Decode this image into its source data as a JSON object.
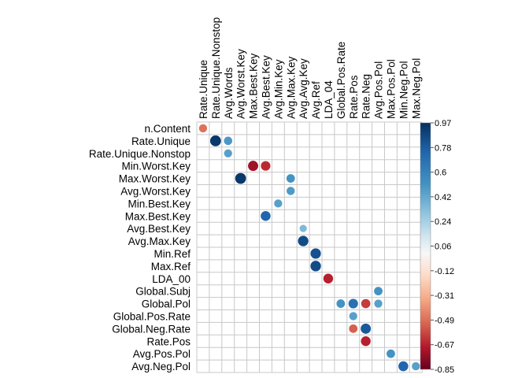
{
  "chart_data": {
    "type": "heatmap",
    "style": "correlation circles, color-coded",
    "rows": [
      "n.Content",
      "Rate.Unique",
      "Rate.Unique.Nonstop",
      "Min.Worst.Key",
      "Max.Worst.Key",
      "Avg.Worst.Key",
      "Min.Best.Key",
      "Max.Best.Key",
      "Avg.Best.Key",
      "Avg.Max.Key",
      "Min.Ref",
      "Max.Ref",
      "LDA_00",
      "Global.Subj",
      "Global.Pol",
      "Global.Pos.Rate",
      "Global.Neg.Rate",
      "Rate.Pos",
      "Avg.Pos.Pol",
      "Avg.Neg.Pol"
    ],
    "columns": [
      "Rate.Unique",
      "Rate.Unique.Nonstop",
      "Avg.Words",
      "Avg.Worst.Key",
      "Max.Best.Key",
      "Avg.Best.Key",
      "Avg.Min.Key",
      "Avg.Max.Key",
      "Avg.Avg.Key",
      "Avg.Ref",
      "LDA_04",
      "Global.Pos.Rate",
      "Rate.Pos",
      "Rate.Neg",
      "Avg.Pos.Pol",
      "Max.Pos.Pol",
      "Min.Neg.Pol",
      "Max.Neg.Pol"
    ],
    "cells": [
      {
        "row": "n.Content",
        "col": "Rate.Unique",
        "value": -0.55
      },
      {
        "row": "Rate.Unique",
        "col": "Rate.Unique.Nonstop",
        "value": 0.97
      },
      {
        "row": "Rate.Unique",
        "col": "Avg.Words",
        "value": 0.58
      },
      {
        "row": "Rate.Unique.Nonstop",
        "col": "Avg.Words",
        "value": 0.55
      },
      {
        "row": "Min.Worst.Key",
        "col": "Max.Best.Key",
        "value": -0.85
      },
      {
        "row": "Min.Worst.Key",
        "col": "Avg.Best.Key",
        "value": -0.75
      },
      {
        "row": "Max.Worst.Key",
        "col": "Avg.Worst.Key",
        "value": 0.97
      },
      {
        "row": "Max.Worst.Key",
        "col": "Avg.Max.Key",
        "value": 0.6
      },
      {
        "row": "Avg.Worst.Key",
        "col": "Avg.Max.Key",
        "value": 0.57
      },
      {
        "row": "Min.Best.Key",
        "col": "Avg.Min.Key",
        "value": 0.55
      },
      {
        "row": "Max.Best.Key",
        "col": "Avg.Best.Key",
        "value": 0.8
      },
      {
        "row": "Avg.Best.Key",
        "col": "Avg.Avg.Key",
        "value": 0.45
      },
      {
        "row": "Avg.Max.Key",
        "col": "Avg.Avg.Key",
        "value": 0.9
      },
      {
        "row": "Min.Ref",
        "col": "Avg.Ref",
        "value": 0.88
      },
      {
        "row": "Max.Ref",
        "col": "Avg.Ref",
        "value": 0.9
      },
      {
        "row": "LDA_00",
        "col": "LDA_04",
        "value": -0.78
      },
      {
        "row": "Global.Subj",
        "col": "Avg.Pos.Pol",
        "value": 0.6
      },
      {
        "row": "Global.Pol",
        "col": "Global.Pos.Rate",
        "value": 0.6
      },
      {
        "row": "Global.Pol",
        "col": "Rate.Pos",
        "value": 0.75
      },
      {
        "row": "Global.Pol",
        "col": "Rate.Neg",
        "value": -0.7
      },
      {
        "row": "Global.Pol",
        "col": "Avg.Pos.Pol",
        "value": 0.55
      },
      {
        "row": "Global.Pos.Rate",
        "col": "Rate.Pos",
        "value": 0.55
      },
      {
        "row": "Global.Neg.Rate",
        "col": "Rate.Pos",
        "value": -0.6
      },
      {
        "row": "Global.Neg.Rate",
        "col": "Rate.Neg",
        "value": 0.85
      },
      {
        "row": "Rate.Pos",
        "col": "Rate.Neg",
        "value": -0.78
      },
      {
        "row": "Avg.Pos.Pol",
        "col": "Max.Pos.Pol",
        "value": 0.6
      },
      {
        "row": "Avg.Neg.Pol",
        "col": "Min.Neg.Pol",
        "value": 0.8
      },
      {
        "row": "Avg.Neg.Pol",
        "col": "Max.Neg.Pol",
        "value": 0.55
      }
    ],
    "colorbar": {
      "range": [
        -0.85,
        0.97
      ],
      "tick_labels": [
        "0.97",
        "0.78",
        "0.6",
        "0.42",
        "0.24",
        "0.06",
        "-0.12",
        "-0.31",
        "-0.49",
        "-0.67",
        "-0.85"
      ],
      "low_color": "#67001f",
      "mid_color": "#f7f7f7",
      "high_color": "#053061",
      "placement": "right"
    },
    "grid": true,
    "title": "",
    "xlabel": "",
    "ylabel": ""
  }
}
